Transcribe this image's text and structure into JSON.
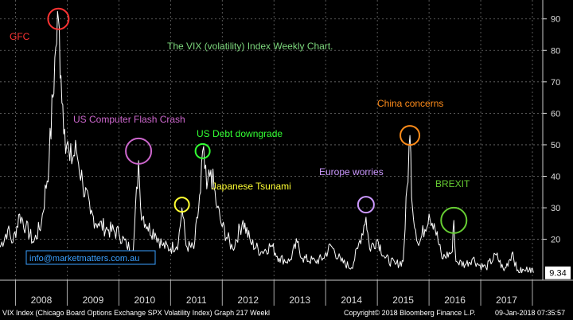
{
  "chart_data": {
    "type": "line",
    "title": "The VIX (volatility) Index Weekly Chart.",
    "x_tick_labels": [
      "2008",
      "2009",
      "2010",
      "2011",
      "2012",
      "2013",
      "2014",
      "2015",
      "2016",
      "2017"
    ],
    "y_ticks": [
      20,
      30,
      40,
      50,
      60,
      70,
      80,
      90
    ],
    "ylim": [
      7,
      96
    ],
    "xlim": [
      2007.7,
      2018.2
    ],
    "last_value": "9.34",
    "key_points": [
      [
        2007.7,
        17.5
      ],
      [
        2007.85,
        23
      ],
      [
        2007.95,
        19
      ],
      [
        2008.08,
        28
      ],
      [
        2008.2,
        24
      ],
      [
        2008.35,
        19
      ],
      [
        2008.5,
        25
      ],
      [
        2008.65,
        45
      ],
      [
        2008.78,
        81
      ],
      [
        2008.83,
        90
      ],
      [
        2008.88,
        72
      ],
      [
        2008.95,
        55
      ],
      [
        2009.05,
        45
      ],
      [
        2009.18,
        48
      ],
      [
        2009.3,
        38
      ],
      [
        2009.45,
        28
      ],
      [
        2009.6,
        25
      ],
      [
        2009.8,
        23
      ],
      [
        2010.0,
        22
      ],
      [
        2010.15,
        18
      ],
      [
        2010.28,
        17
      ],
      [
        2010.38,
        45
      ],
      [
        2010.42,
        30
      ],
      [
        2010.55,
        24
      ],
      [
        2010.7,
        22
      ],
      [
        2010.85,
        18
      ],
      [
        2011.0,
        17
      ],
      [
        2011.15,
        19
      ],
      [
        2011.22,
        30
      ],
      [
        2011.3,
        18
      ],
      [
        2011.45,
        17
      ],
      [
        2011.58,
        35
      ],
      [
        2011.62,
        48
      ],
      [
        2011.7,
        36
      ],
      [
        2011.78,
        42
      ],
      [
        2011.9,
        30
      ],
      [
        2012.0,
        24
      ],
      [
        2012.2,
        17
      ],
      [
        2012.4,
        26
      ],
      [
        2012.55,
        19
      ],
      [
        2012.75,
        16
      ],
      [
        2012.95,
        18
      ],
      [
        2013.1,
        14
      ],
      [
        2013.3,
        13
      ],
      [
        2013.45,
        19
      ],
      [
        2013.55,
        14
      ],
      [
        2013.8,
        13
      ],
      [
        2013.95,
        14
      ],
      [
        2014.1,
        18
      ],
      [
        2014.3,
        13
      ],
      [
        2014.5,
        11
      ],
      [
        2014.62,
        17
      ],
      [
        2014.78,
        27
      ],
      [
        2014.85,
        17
      ],
      [
        2015.0,
        20
      ],
      [
        2015.15,
        14
      ],
      [
        2015.35,
        12
      ],
      [
        2015.5,
        13
      ],
      [
        2015.63,
        53
      ],
      [
        2015.68,
        30
      ],
      [
        2015.8,
        18
      ],
      [
        2016.0,
        28
      ],
      [
        2016.1,
        25
      ],
      [
        2016.25,
        14
      ],
      [
        2016.45,
        16
      ],
      [
        2016.48,
        26
      ],
      [
        2016.52,
        13
      ],
      [
        2016.7,
        12
      ],
      [
        2016.85,
        14
      ],
      [
        2016.95,
        12
      ],
      [
        2017.1,
        11
      ],
      [
        2017.3,
        15
      ],
      [
        2017.45,
        10
      ],
      [
        2017.62,
        16
      ],
      [
        2017.7,
        10
      ],
      [
        2017.85,
        10
      ],
      [
        2017.95,
        11
      ],
      [
        2018.02,
        9.34
      ]
    ]
  },
  "annotations": [
    {
      "text": "GFC",
      "color": "#ff3333",
      "circle_x": 2008.83,
      "circle_y": 90
    },
    {
      "text": "US Computer Flash Crash",
      "color": "#cc66cc",
      "circle_x": 2010.38,
      "circle_y": 48
    },
    {
      "text": "US Debt downgrade",
      "color": "#33ff33",
      "circle_x": 2011.62,
      "circle_y": 48
    },
    {
      "text": "Japanese Tsunami",
      "color": "#ffff33",
      "circle_x": 2011.22,
      "circle_y": 31
    },
    {
      "text": "Europe worries",
      "color": "#cc99ff",
      "circle_x": 2014.78,
      "circle_y": 31
    },
    {
      "text": "China concerns",
      "color": "#ff8c1a",
      "circle_x": 2015.63,
      "circle_y": 53
    },
    {
      "text": "BREXIT",
      "color": "#66cc33",
      "circle_x": 2016.48,
      "circle_y": 26
    }
  ],
  "watermark": "info@marketmatters.com.au",
  "footer": {
    "left": "VIX Index (Chicago Board Options Exchange SPX Volatility Index) Graph 217  Weekl",
    "center": "Copyright© 2018 Bloomberg Finance L.P.",
    "right": "09-Jan-2018 07:35:57"
  },
  "colors": {
    "background": "#000000",
    "line": "#ffffff",
    "grid": "#6e6e6e",
    "watermark": "#3aa0ff",
    "title": "#7dd87d"
  }
}
